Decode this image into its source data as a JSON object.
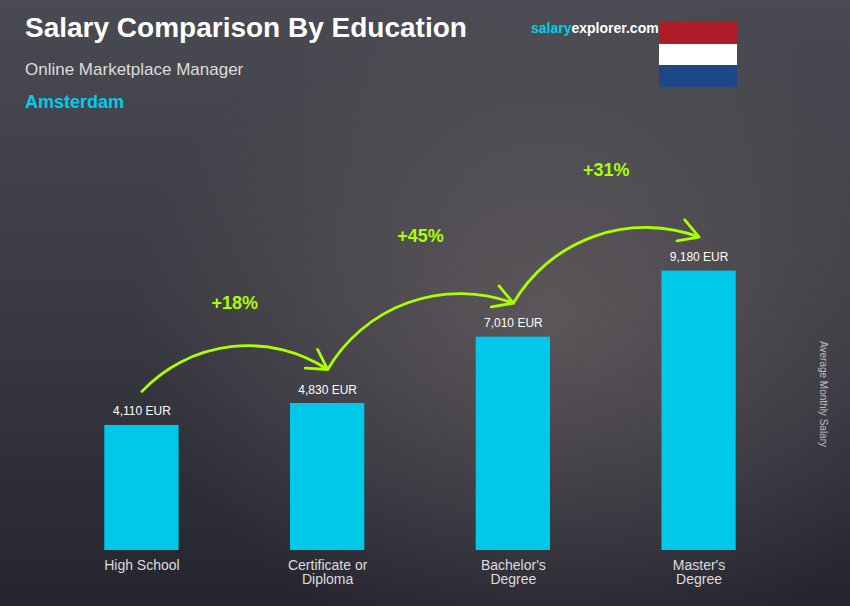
{
  "chart_data": {
    "type": "bar",
    "title": "Salary Comparison By Education",
    "subtitle": "Online Marketplace Manager",
    "city": "Amsterdam",
    "watermark": [
      "salary",
      "explorer.com"
    ],
    "ylabel": "Average Monthly Salary",
    "categories": [
      "High School",
      "Certificate or\nDiploma",
      "Bachelor's\nDegree",
      "Master's\nDegree"
    ],
    "values": [
      4110,
      4830,
      7010,
      9180
    ],
    "value_labels": [
      "4,110 EUR",
      "4,830 EUR",
      "7,010 EUR",
      "9,180 EUR"
    ],
    "data_labels": true,
    "color": "#00c8e8",
    "ylim": [
      0,
      11500
    ],
    "tick_labels": "x",
    "grid": false,
    "annotations": [
      {
        "text": "+18%",
        "from": "High School",
        "to": "Certificate or\nDiploma"
      },
      {
        "text": "+45%",
        "from": "Certificate or\nDiploma",
        "to": "Bachelor's\nDegree"
      },
      {
        "text": "+31%",
        "from": "Bachelor's\nDegree",
        "to": "Master's\nDegree"
      }
    ]
  }
}
